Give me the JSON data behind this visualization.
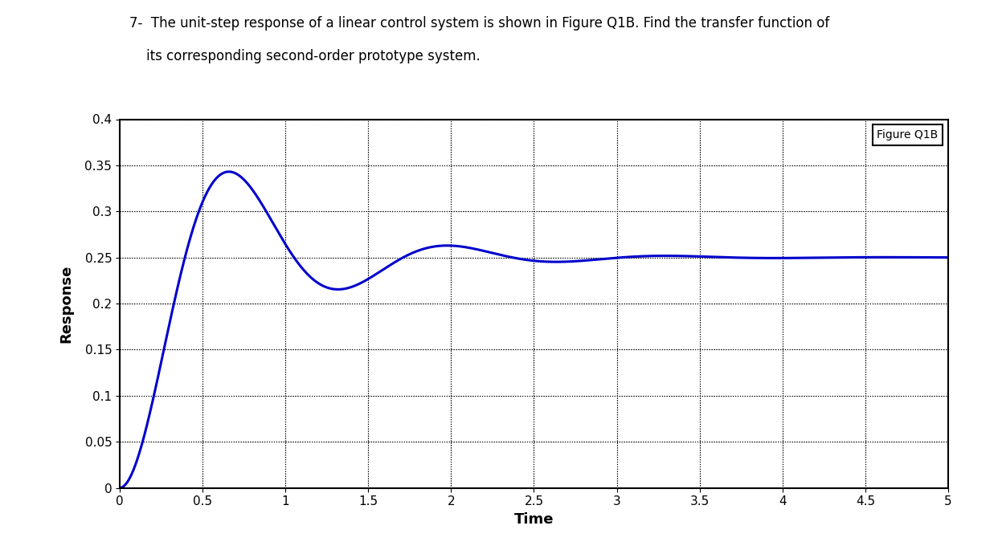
{
  "title_line1": "7-  The unit-step response of a linear control system is shown in Figure Q1B. Find the transfer function of",
  "title_line2": "    its corresponding second-order prototype system.",
  "legend_label": "Figure Q1B",
  "xlabel": "Time",
  "ylabel": "Response",
  "xlim": [
    0,
    5
  ],
  "ylim": [
    0,
    0.4
  ],
  "xticks": [
    0,
    0.5,
    1,
    1.5,
    2,
    2.5,
    3,
    3.5,
    4,
    4.5,
    5
  ],
  "xticklabels": [
    "0",
    "0.5",
    "1",
    "1.5",
    "2",
    "2.5",
    "3",
    "3.5",
    "4",
    "4.5",
    "5"
  ],
  "yticks": [
    0,
    0.05,
    0.1,
    0.15,
    0.2,
    0.25,
    0.3,
    0.35,
    0.4
  ],
  "yticklabels": [
    "0",
    "0.05",
    "0.1",
    "0.15",
    "0.2",
    "0.25",
    "0.3",
    "0.35",
    "0.4"
  ],
  "line_color": "#0000cc",
  "line_width": 2.2,
  "grid_color": "#000000",
  "background_color": "#ffffff",
  "wn": 5.0,
  "zeta": 0.3,
  "dc_gain": 0.25,
  "figsize": [
    12.42,
    6.75
  ],
  "dpi": 100,
  "title_fontsize": 12,
  "axis_label_fontsize": 13,
  "tick_fontsize": 11,
  "legend_fontsize": 10
}
